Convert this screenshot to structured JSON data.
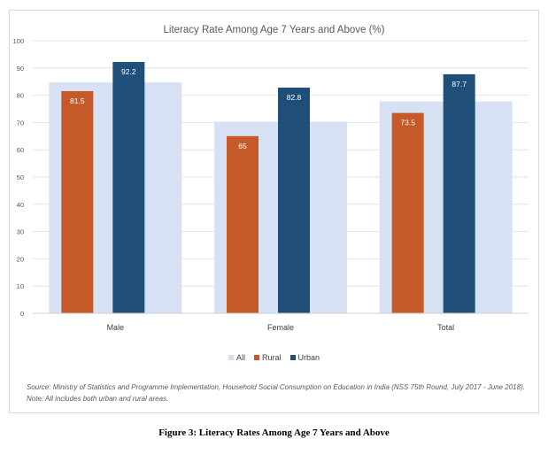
{
  "colors": {
    "all": "#d6e1f3",
    "rural": "#c55a28",
    "urban": "#1f4e79",
    "grid": "#e3e3e3",
    "axis_text": "#595959"
  },
  "chart_data": {
    "type": "bar",
    "title": "Literacy Rate Among Age 7 Years and Above (%)",
    "categories": [
      "Male",
      "Female",
      "Total"
    ],
    "series": [
      {
        "name": "All",
        "values": [
          84.7,
          70.3,
          77.7
        ]
      },
      {
        "name": "Rural",
        "values": [
          81.5,
          65,
          73.5
        ]
      },
      {
        "name": "Urban",
        "values": [
          92.2,
          82.8,
          87.7
        ]
      }
    ],
    "data_labels": {
      "Rural": [
        "81.5",
        "65",
        "73.5"
      ],
      "Urban": [
        "92.2",
        "82.8",
        "87.7"
      ]
    },
    "ylim": [
      0,
      100
    ],
    "yticks": [
      "0",
      "10",
      "20",
      "30",
      "40",
      "50",
      "60",
      "70",
      "80",
      "90",
      "100"
    ],
    "grid": true,
    "legend_position": "bottom"
  },
  "source_note": "Source: Ministry of Statistics and Programme Implementation, Household Social Consumption on Education in India (NSS 75th Round, July 2017 - June 2018). Note: All includes both urban and rural areas.",
  "figure_caption": "Figure 3: Literacy Rates Among Age 7 Years and Above"
}
